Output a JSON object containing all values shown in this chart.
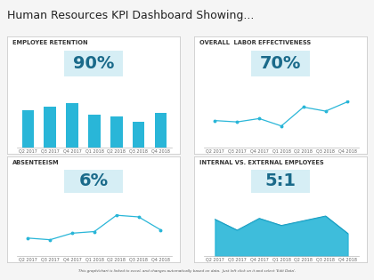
{
  "title": "Human Resources KPI Dashboard Showing...",
  "title_fontsize": 9,
  "footer": "This graph/chart is linked to excel, and changes automatically based on data.  Just left click on it and select 'Edit Data'.",
  "panels": [
    {
      "label": "EMPLOYEE RETENTION",
      "kpi": "90%",
      "chart_type": "bar",
      "x_labels": [
        "Q2 2017",
        "Q3 2017",
        "Q4 2017",
        "Q1 2018",
        "Q2 2018",
        "Q3 2018",
        "Q4 2018"
      ],
      "values": [
        0.62,
        0.68,
        0.75,
        0.55,
        0.52,
        0.43,
        0.58
      ],
      "bar_color": "#29b6d8",
      "line_color": "#29b6d8"
    },
    {
      "label": "OVERALL  LABOR EFFECTIVENESS",
      "kpi": "70%",
      "chart_type": "line",
      "x_labels": [
        "Q2 2017",
        "Q3 2017",
        "Q4 2017",
        "Q1 2018",
        "Q2 2018",
        "Q3 2018",
        "Q4 2018"
      ],
      "values": [
        0.4,
        0.38,
        0.43,
        0.32,
        0.6,
        0.54,
        0.68
      ],
      "line_color": "#29b6d8"
    },
    {
      "label": "ABSENTEEISM",
      "kpi": "6%",
      "chart_type": "line",
      "x_labels": [
        "Q2 2017",
        "Q3 2017",
        "Q4 2017",
        "Q1 2018",
        "Q2 2018",
        "Q3 2018",
        "Q4 2018"
      ],
      "values": [
        0.22,
        0.2,
        0.28,
        0.3,
        0.5,
        0.48,
        0.32
      ],
      "line_color": "#29b6d8"
    },
    {
      "label": "INTERNAL VS. EXTERNAL EMPLOYEES",
      "kpi": "5:1",
      "chart_type": "area",
      "x_labels": [
        "Q2 2017",
        "Q3 2017",
        "Q4 2017",
        "Q1 2018",
        "Q2 2018",
        "Q3 2018",
        "Q4 2018"
      ],
      "values": [
        0.78,
        0.55,
        0.8,
        0.65,
        0.75,
        0.85,
        0.48
      ],
      "line_color": "#1a9bbf",
      "fill_color": "#29b6d8"
    }
  ],
  "bg_color": "#f5f5f5",
  "panel_bg": "#ffffff",
  "panel_border": "#cccccc",
  "kpi_bg": "#d6eef5",
  "kpi_fontsize": 14,
  "label_fontsize": 4.8,
  "tick_fontsize": 3.5,
  "header_bar_color": "#888888",
  "title_bg": "#f0f0f0"
}
